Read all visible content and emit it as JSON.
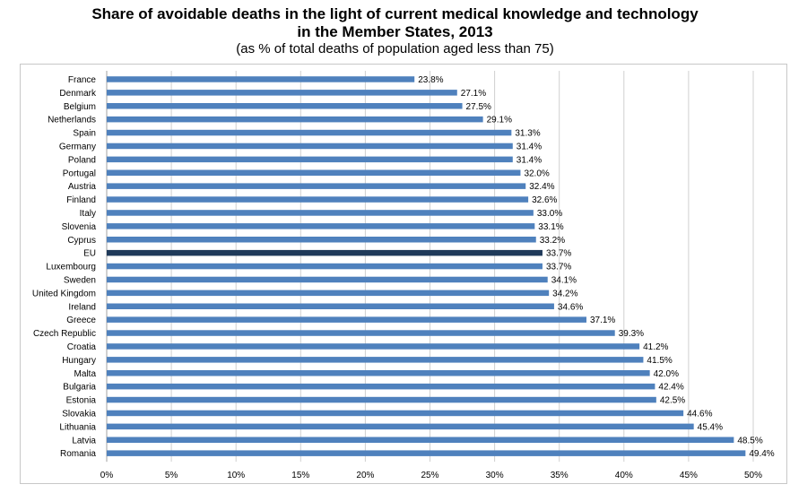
{
  "chart_data": {
    "type": "bar",
    "orientation": "horizontal",
    "title_line1": "Share of avoidable deaths in the light of current medical knowledge and technology",
    "title_line2": "in the Member States, 2013",
    "subtitle": "(as % of total deaths of population aged less than 75)",
    "categories": [
      "France",
      "Denmark",
      "Belgium",
      "Netherlands",
      "Spain",
      "Germany",
      "Poland",
      "Portugal",
      "Austria",
      "Finland",
      "Italy",
      "Slovenia",
      "Cyprus",
      "EU",
      "Luxembourg",
      "Sweden",
      "United Kingdom",
      "Ireland",
      "Greece",
      "Czech Republic",
      "Croatia",
      "Hungary",
      "Malta",
      "Bulgaria",
      "Estonia",
      "Slovakia",
      "Lithuania",
      "Latvia",
      "Romania"
    ],
    "values": [
      23.8,
      27.1,
      27.5,
      29.1,
      31.3,
      31.4,
      31.4,
      32.0,
      32.4,
      32.6,
      33.0,
      33.1,
      33.2,
      33.7,
      33.7,
      34.1,
      34.2,
      34.6,
      37.1,
      39.3,
      41.2,
      41.5,
      42.0,
      42.4,
      42.5,
      44.6,
      45.4,
      48.5,
      49.4
    ],
    "value_labels": [
      "23.8%",
      "27.1%",
      "27.5%",
      "29.1%",
      "31.3%",
      "31.4%",
      "31.4%",
      "32.0%",
      "32.4%",
      "32.6%",
      "33.0%",
      "33.1%",
      "33.2%",
      "33.7%",
      "33.7%",
      "34.1%",
      "34.2%",
      "34.6%",
      "37.1%",
      "39.3%",
      "41.2%",
      "41.5%",
      "42.0%",
      "42.4%",
      "42.5%",
      "44.6%",
      "45.4%",
      "48.5%",
      "49.4%"
    ],
    "highlight_category": "EU",
    "xlim": [
      0,
      50
    ],
    "x_ticks": [
      "0%",
      "5%",
      "10%",
      "15%",
      "20%",
      "25%",
      "30%",
      "35%",
      "40%",
      "45%",
      "50%"
    ],
    "grid": "vertical",
    "colors": {
      "bar": "#4f81bd",
      "highlight": "#1f3a5a",
      "grid": "#d0d0d0"
    }
  }
}
